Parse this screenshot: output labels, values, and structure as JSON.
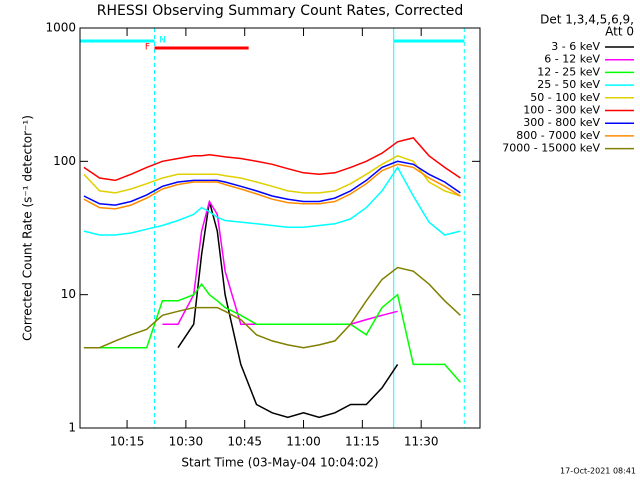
{
  "chart_data": {
    "type": "line",
    "title": "RHESSI Observing Summary Count Rates, Corrected",
    "legend_header": [
      "Det 1,3,4,5,6,9,",
      "Att 0"
    ],
    "xlabel": "Start Time (03-May-04 10:04:02)",
    "ylabel": "Corrected Count Rate (s⁻¹ detector⁻¹)",
    "footer": "17-Oct-2021 08:41",
    "log_y": true,
    "ylim": [
      1,
      1000
    ],
    "yticks": [
      1,
      10,
      100,
      1000
    ],
    "xlim": [
      "10:03",
      "11:45"
    ],
    "xticks": [
      "10:15",
      "10:30",
      "10:45",
      "11:00",
      "11:15",
      "11:30"
    ],
    "legend": "right",
    "night": {
      "label": "N",
      "color": "#00ffff",
      "intervals": [
        [
          "10:03",
          "10:22"
        ],
        [
          "11:23",
          "11:41"
        ]
      ]
    },
    "flare": {
      "label": "F",
      "color": "#ff0000",
      "start": "10:22",
      "end": "10:46"
    },
    "x": [
      "10:04",
      "10:08",
      "10:12",
      "10:16",
      "10:20",
      "10:24",
      "10:28",
      "10:32",
      "10:34",
      "10:36",
      "10:38",
      "10:40",
      "10:44",
      "10:48",
      "10:52",
      "10:56",
      "11:00",
      "11:04",
      "11:08",
      "11:12",
      "11:16",
      "11:20",
      "11:24",
      "11:28",
      "11:32",
      "11:36",
      "11:40"
    ],
    "series": [
      {
        "name": "3 - 6 keV",
        "color": "#000000",
        "values": [
          null,
          null,
          null,
          null,
          null,
          null,
          4,
          6,
          20,
          50,
          30,
          10,
          3,
          1.5,
          1.3,
          1.2,
          1.3,
          1.2,
          1.3,
          1.5,
          1.5,
          2,
          3,
          null,
          null,
          null,
          null
        ]
      },
      {
        "name": "6 - 12 keV",
        "color": "#ff00ff",
        "values": [
          null,
          null,
          null,
          null,
          null,
          6,
          6,
          10,
          30,
          50,
          40,
          15,
          6,
          6,
          6,
          6,
          6,
          6,
          6,
          6,
          6.5,
          7,
          7.5,
          null,
          null,
          null,
          null
        ]
      },
      {
        "name": "12 - 25 keV",
        "color": "#00ff00",
        "values": [
          4,
          4,
          4,
          4,
          4,
          9,
          9,
          10,
          12,
          10,
          9,
          8,
          7,
          6,
          6,
          6,
          6,
          6,
          6,
          6,
          5,
          8,
          10,
          3,
          3,
          3,
          2.2
        ]
      },
      {
        "name": "25 - 50 keV",
        "color": "#00ffff",
        "values": [
          30,
          28,
          28,
          29,
          31,
          33,
          36,
          40,
          45,
          42,
          38,
          36,
          35,
          34,
          33,
          32,
          32,
          33,
          34,
          37,
          45,
          60,
          90,
          55,
          35,
          28,
          30
        ]
      },
      {
        "name": "50 - 100 keV",
        "color": "#e0d000",
        "values": [
          80,
          60,
          58,
          62,
          68,
          75,
          80,
          80,
          80,
          80,
          80,
          78,
          75,
          70,
          65,
          60,
          58,
          58,
          60,
          68,
          80,
          95,
          110,
          100,
          70,
          60,
          55
        ]
      },
      {
        "name": "100 - 300 keV",
        "color": "#ff0000",
        "values": [
          90,
          75,
          72,
          80,
          90,
          100,
          105,
          110,
          110,
          112,
          110,
          108,
          105,
          100,
          95,
          88,
          82,
          80,
          82,
          90,
          100,
          115,
          140,
          150,
          110,
          90,
          75
        ]
      },
      {
        "name": "300 - 800 keV",
        "color": "#0000ff",
        "values": [
          55,
          48,
          47,
          50,
          56,
          65,
          70,
          72,
          72,
          72,
          72,
          70,
          65,
          60,
          55,
          52,
          50,
          50,
          53,
          60,
          72,
          90,
          100,
          95,
          80,
          70,
          58
        ]
      },
      {
        "name": "800 - 7000 keV",
        "color": "#ff8c00",
        "values": [
          52,
          45,
          44,
          47,
          53,
          62,
          67,
          70,
          70,
          70,
          70,
          67,
          62,
          57,
          52,
          49,
          48,
          48,
          50,
          57,
          68,
          85,
          95,
          90,
          75,
          65,
          55
        ]
      },
      {
        "name": "7000 - 15000 keV",
        "color": "#808000",
        "values": [
          4,
          4,
          4.5,
          5,
          5.5,
          7,
          7.5,
          8,
          8,
          8,
          8,
          7.5,
          6.5,
          5,
          4.5,
          4.2,
          4,
          4.2,
          4.5,
          6,
          9,
          13,
          16,
          15,
          12,
          9,
          7
        ]
      }
    ]
  }
}
